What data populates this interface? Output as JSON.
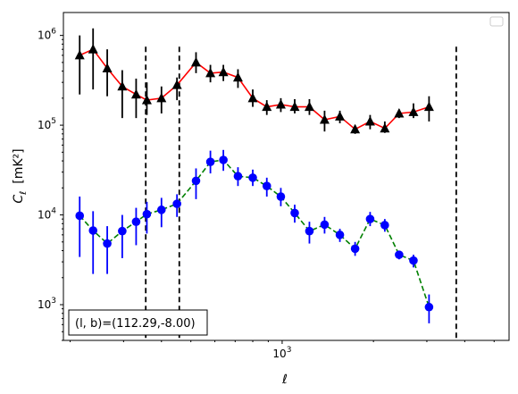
{
  "chart_data": {
    "type": "line",
    "xlabel": "ℓ",
    "ylabel_main": "C",
    "ylabel_sub": "ℓ",
    "ylabel_unit": "[mK²]",
    "x_scale": "log",
    "y_scale": "log",
    "xlim": [
      190,
      5600
    ],
    "ylim": [
      400,
      1800000
    ],
    "x_tick_labels": [
      {
        "value": 1000,
        "base": "10",
        "exp": "3"
      }
    ],
    "y_tick_labels": [
      {
        "value": 1000,
        "base": "10",
        "exp": "3"
      },
      {
        "value": 10000,
        "base": "10",
        "exp": "4"
      },
      {
        "value": 100000,
        "base": "10",
        "exp": "5"
      },
      {
        "value": 1000000,
        "base": "10",
        "exp": "6"
      }
    ],
    "legend": "top-right (empty)",
    "annotation": "(l, b)=(112.29,-8.00)",
    "vlines": [
      355,
      458,
      3750
    ],
    "series": [
      {
        "color": "#ff0000",
        "line_style": "solid",
        "marker": "triangle",
        "marker_color": "#000000",
        "points": [
          {
            "x": 215,
            "y": 600000,
            "lo": 220000,
            "hi": 1000000
          },
          {
            "x": 238,
            "y": 700000,
            "lo": 250000,
            "hi": 1200000
          },
          {
            "x": 265,
            "y": 430000,
            "lo": 210000,
            "hi": 700000
          },
          {
            "x": 297,
            "y": 270000,
            "lo": 120000,
            "hi": 410000
          },
          {
            "x": 330,
            "y": 220000,
            "lo": 120000,
            "hi": 330000
          },
          {
            "x": 358,
            "y": 190000,
            "lo": 130000,
            "hi": 300000
          },
          {
            "x": 400,
            "y": 200000,
            "lo": 135000,
            "hi": 270000
          },
          {
            "x": 450,
            "y": 280000,
            "lo": 190000,
            "hi": 340000
          },
          {
            "x": 520,
            "y": 500000,
            "lo": 380000,
            "hi": 650000
          },
          {
            "x": 580,
            "y": 380000,
            "lo": 300000,
            "hi": 470000
          },
          {
            "x": 640,
            "y": 390000,
            "lo": 310000,
            "hi": 470000
          },
          {
            "x": 715,
            "y": 340000,
            "lo": 260000,
            "hi": 420000
          },
          {
            "x": 800,
            "y": 200000,
            "lo": 160000,
            "hi": 250000
          },
          {
            "x": 890,
            "y": 160000,
            "lo": 130000,
            "hi": 190000
          },
          {
            "x": 990,
            "y": 170000,
            "lo": 140000,
            "hi": 200000
          },
          {
            "x": 1100,
            "y": 160000,
            "lo": 135000,
            "hi": 195000
          },
          {
            "x": 1230,
            "y": 160000,
            "lo": 130000,
            "hi": 195000
          },
          {
            "x": 1380,
            "y": 115000,
            "lo": 85000,
            "hi": 145000
          },
          {
            "x": 1550,
            "y": 125000,
            "lo": 105000,
            "hi": 145000
          },
          {
            "x": 1740,
            "y": 90000,
            "lo": 80000,
            "hi": 100000
          },
          {
            "x": 1950,
            "y": 110000,
            "lo": 90000,
            "hi": 130000
          },
          {
            "x": 2180,
            "y": 92000,
            "lo": 82000,
            "hi": 110000
          },
          {
            "x": 2430,
            "y": 135000,
            "lo": 120000,
            "hi": 150000
          },
          {
            "x": 2710,
            "y": 140000,
            "lo": 120000,
            "hi": 175000
          },
          {
            "x": 3050,
            "y": 160000,
            "lo": 110000,
            "hi": 210000
          }
        ]
      },
      {
        "color": "#008000",
        "line_style": "dashed",
        "marker": "circle",
        "marker_color": "#0000ff",
        "points": [
          {
            "x": 215,
            "y": 9800,
            "lo": 3400,
            "hi": 16000
          },
          {
            "x": 238,
            "y": 6700,
            "lo": 2200,
            "hi": 11000
          },
          {
            "x": 265,
            "y": 4800,
            "lo": 2200,
            "hi": 7500
          },
          {
            "x": 297,
            "y": 6600,
            "lo": 3300,
            "hi": 10000
          },
          {
            "x": 330,
            "y": 8400,
            "lo": 4600,
            "hi": 12000
          },
          {
            "x": 358,
            "y": 10200,
            "lo": 6200,
            "hi": 14000
          },
          {
            "x": 400,
            "y": 11400,
            "lo": 7300,
            "hi": 15500
          },
          {
            "x": 450,
            "y": 13300,
            "lo": 9500,
            "hi": 17000
          },
          {
            "x": 520,
            "y": 24000,
            "lo": 15000,
            "hi": 33000
          },
          {
            "x": 580,
            "y": 39000,
            "lo": 29000,
            "hi": 52000
          },
          {
            "x": 640,
            "y": 41000,
            "lo": 31000,
            "hi": 53000
          },
          {
            "x": 715,
            "y": 27000,
            "lo": 21000,
            "hi": 34000
          },
          {
            "x": 800,
            "y": 26000,
            "lo": 21000,
            "hi": 32000
          },
          {
            "x": 890,
            "y": 21000,
            "lo": 16000,
            "hi": 26000
          },
          {
            "x": 990,
            "y": 16000,
            "lo": 12500,
            "hi": 20000
          },
          {
            "x": 1100,
            "y": 10500,
            "lo": 8200,
            "hi": 13000
          },
          {
            "x": 1230,
            "y": 6600,
            "lo": 4800,
            "hi": 8400
          },
          {
            "x": 1380,
            "y": 7800,
            "lo": 6200,
            "hi": 9500
          },
          {
            "x": 1550,
            "y": 6000,
            "lo": 5000,
            "hi": 7000
          },
          {
            "x": 1740,
            "y": 4200,
            "lo": 3500,
            "hi": 5000
          },
          {
            "x": 1950,
            "y": 9000,
            "lo": 7500,
            "hi": 10800
          },
          {
            "x": 2180,
            "y": 7700,
            "lo": 6500,
            "hi": 9000
          },
          {
            "x": 2430,
            "y": 3600,
            "lo": 3200,
            "hi": 4000
          },
          {
            "x": 2710,
            "y": 3100,
            "lo": 2600,
            "hi": 3600
          },
          {
            "x": 3050,
            "y": 940,
            "lo": 620,
            "hi": 1300
          }
        ]
      }
    ]
  }
}
